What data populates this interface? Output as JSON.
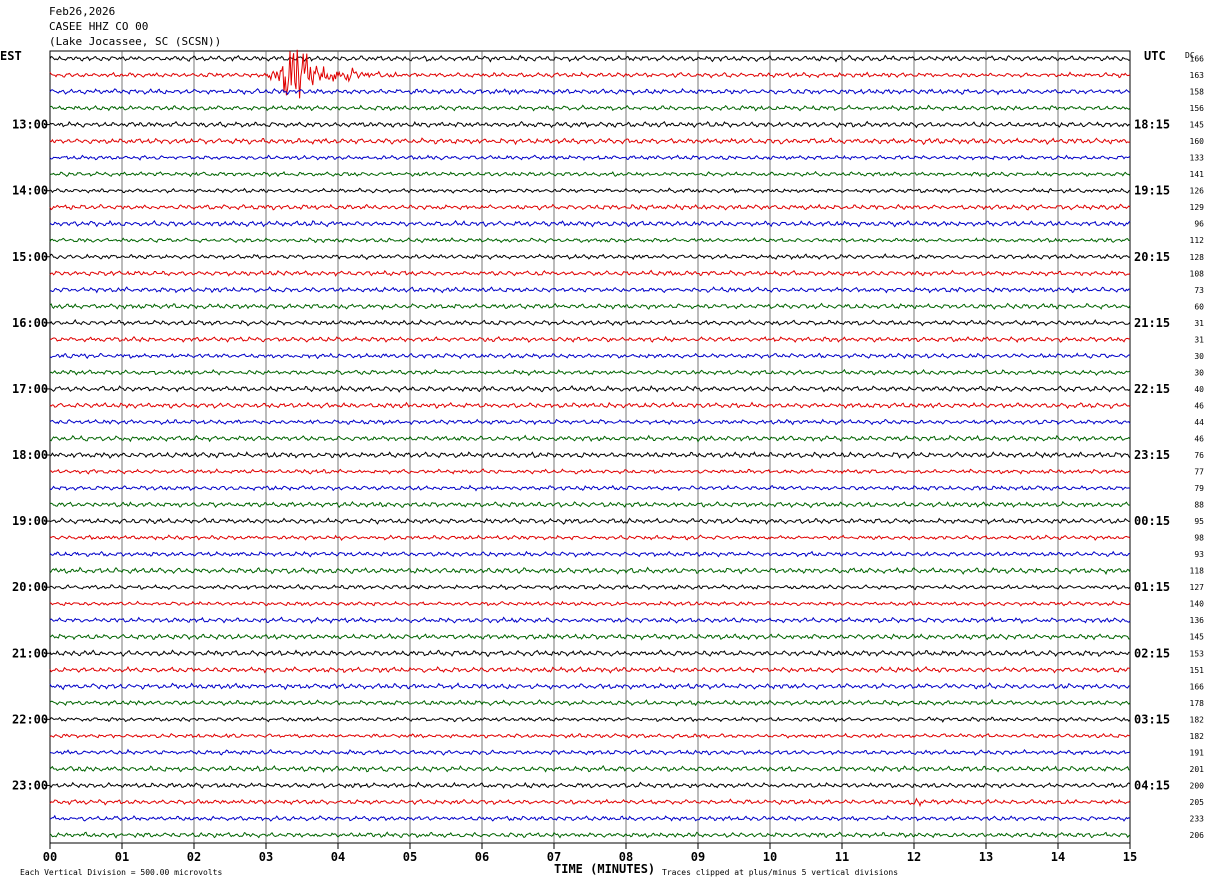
{
  "header": {
    "date": "Feb26,2026",
    "station": "CASEE HHZ CO 00",
    "location": "(Lake Jocassee, SC (SCSN))"
  },
  "chart_data": {
    "type": "line",
    "title": "Feb26,2026",
    "left_axis_label": "EST",
    "right_axis_label": "UTC",
    "dc_label": "DC",
    "xlabel": "TIME (MINUTES)",
    "x_ticks": [
      "00",
      "01",
      "02",
      "03",
      "04",
      "05",
      "06",
      "07",
      "08",
      "09",
      "10",
      "11",
      "12",
      "13",
      "14",
      "15"
    ],
    "xlim": [
      0,
      15
    ],
    "est_hour_labels": [
      "13:00",
      "14:00",
      "15:00",
      "16:00",
      "17:00",
      "18:00",
      "19:00",
      "20:00",
      "21:00",
      "22:00",
      "23:00"
    ],
    "utc_hour_labels": [
      "18:15",
      "19:15",
      "20:15",
      "21:15",
      "22:15",
      "23:15",
      "00:15",
      "01:15",
      "02:15",
      "03:15",
      "04:15"
    ],
    "dc_offsets": [
      166,
      163,
      158,
      156,
      145,
      160,
      133,
      141,
      126,
      129,
      96,
      112,
      128,
      108,
      73,
      60,
      31,
      31,
      30,
      30,
      40,
      46,
      44,
      46,
      76,
      77,
      79,
      88,
      95,
      98,
      93,
      118,
      127,
      140,
      136,
      145,
      153,
      151,
      166,
      178,
      182,
      182,
      191,
      201,
      200,
      205,
      233,
      206
    ],
    "trace_colors": [
      "#000000",
      "#e00000",
      "#0000c8",
      "#006400"
    ],
    "events": [
      {
        "trace_index": 1,
        "start_min": 2.95,
        "peak_min": 3.4,
        "end_min": 5.3,
        "description_shown": false
      },
      {
        "trace_index": 45,
        "start_min": 11.8,
        "peak_min": 11.95,
        "end_min": 12.1,
        "description_shown": false
      }
    ],
    "footer_left": "Each Vertical Division =  500.00 microvolts",
    "footer_right": "Traces clipped at plus/minus 5 vertical divisions",
    "grid": true
  }
}
